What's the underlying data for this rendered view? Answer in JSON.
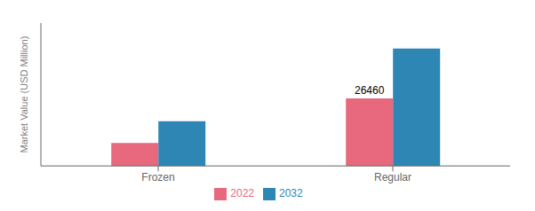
{
  "chart_data": {
    "type": "bar",
    "categories": [
      "Frozen",
      "Regular"
    ],
    "series": [
      {
        "name": "2022",
        "color": "#e8697d",
        "values": [
          9000,
          26460
        ]
      },
      {
        "name": "2032",
        "color": "#2e86b5",
        "values": [
          17500,
          46000
        ]
      }
    ],
    "ylabel": "Market Value (USD Million)",
    "ylim": [
      0,
      56000
    ],
    "annotations": [
      {
        "text": "26460",
        "category": "Regular",
        "series": "2022"
      }
    ],
    "tick_labels": "x",
    "grid": false,
    "legend": "bottom"
  }
}
